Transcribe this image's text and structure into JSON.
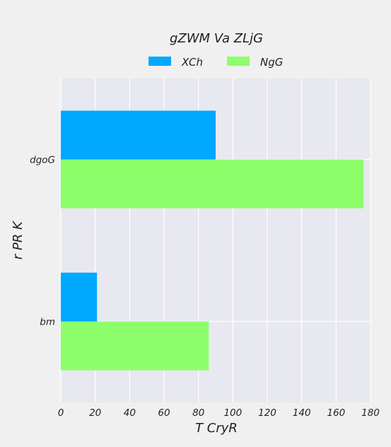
{
  "chart_data": {
    "type": "bar",
    "orientation": "horizontal",
    "title": "gZWM Va ZLjG",
    "xlabel": "T CryR",
    "ylabel": "r  PR K",
    "categories": [
      "dgoG",
      "bm"
    ],
    "series": [
      {
        "name": "XCh",
        "color": "#00a8ff",
        "values": [
          90,
          21
        ]
      },
      {
        "name": "NgG",
        "color": "#8cff6a",
        "values": [
          176,
          86
        ]
      }
    ],
    "xlim": [
      0,
      180
    ],
    "xticks": [
      0,
      20,
      40,
      60,
      80,
      100,
      120,
      140,
      160,
      180
    ],
    "grid": true,
    "legend_position": "top-center",
    "plot_background": "#e8e8f0"
  }
}
